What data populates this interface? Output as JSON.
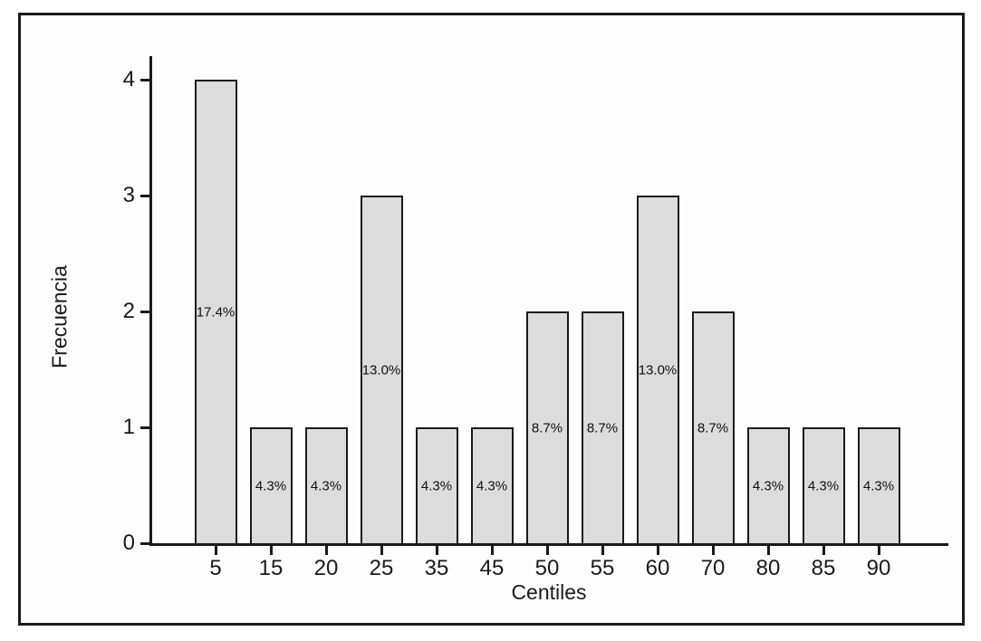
{
  "figure": {
    "background": "#ffffff",
    "frame_border_color": "#1a1a1a"
  },
  "chart_data": {
    "type": "bar",
    "title": "",
    "xlabel": "Centiles",
    "ylabel": "Frecuencia",
    "categories": [
      "5",
      "15",
      "20",
      "25",
      "35",
      "45",
      "50",
      "55",
      "60",
      "70",
      "80",
      "85",
      "90"
    ],
    "values": [
      4,
      1,
      1,
      3,
      1,
      1,
      2,
      2,
      3,
      2,
      1,
      1,
      1
    ],
    "bar_labels": [
      "17.4%",
      "4.3%",
      "4.3%",
      "13.0%",
      "4.3%",
      "4.3%",
      "8.7%",
      "8.7%",
      "13.0%",
      "8.7%",
      "4.3%",
      "4.3%",
      "4.3%"
    ],
    "y_ticks": [
      0,
      1,
      2,
      3,
      4
    ],
    "ylim": [
      0,
      4.2
    ],
    "grid": false,
    "legend": null,
    "bar_fill": "#dcdcdc",
    "bar_border": "#1a1a1a"
  }
}
